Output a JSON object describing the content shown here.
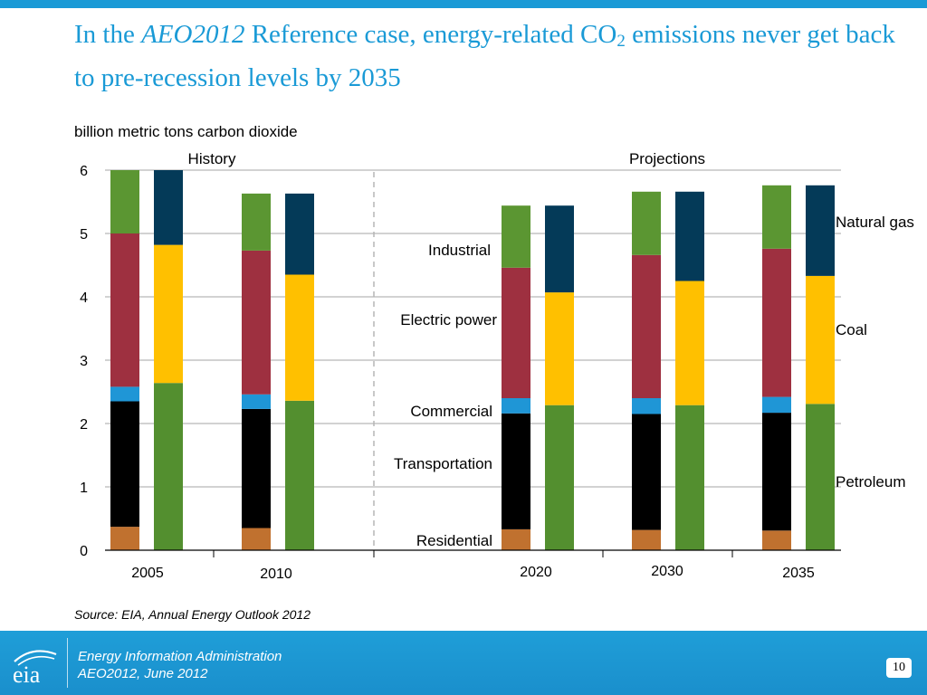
{
  "slide": {
    "title_pre": "In the ",
    "title_italic": "AEO2012",
    "title_mid": " Reference case, energy-related CO",
    "title_sub": "2",
    "title_post": " emissions never get back to pre-recession levels by 2035",
    "units_label": "billion metric tons carbon dioxide",
    "source": "Source:  EIA, Annual Energy Outlook 2012",
    "page_number": "10"
  },
  "footer": {
    "org": "Energy Information Administration",
    "report": "AEO2012, June 2012",
    "logo_text": "eia"
  },
  "colors": {
    "residential": "#c0712f",
    "transportation": "#000000",
    "commercial": "#1f96d6",
    "electric_power": "#9e3040",
    "industrial": "#5b9632",
    "petroleum": "#538f2f",
    "coal": "#ffc000",
    "natural_gas": "#043a58",
    "accent": "#1a9ad6"
  },
  "chart_data": {
    "type": "bar",
    "stacked": true,
    "ylabel": "billion metric tons carbon dioxide",
    "ylim": [
      0,
      6
    ],
    "yticks": [
      "0",
      "1",
      "2",
      "3",
      "4",
      "5",
      "6"
    ],
    "regions": [
      {
        "label": "History",
        "years": [
          "2005",
          "2010"
        ]
      },
      {
        "label": "Projections",
        "years": [
          "2020",
          "2030",
          "2035"
        ]
      }
    ],
    "categories": [
      "2005",
      "2010",
      "2020",
      "2030",
      "2035"
    ],
    "by_sector": {
      "residential": [
        0.37,
        0.35,
        0.33,
        0.32,
        0.31
      ],
      "transportation": [
        1.98,
        1.88,
        1.83,
        1.83,
        1.86
      ],
      "commercial": [
        0.23,
        0.23,
        0.24,
        0.25,
        0.25
      ],
      "electric_power": [
        2.42,
        2.27,
        2.06,
        2.26,
        2.34
      ],
      "industrial": [
        1.0,
        0.9,
        0.98,
        1.0,
        1.0
      ]
    },
    "by_fuel": {
      "petroleum": [
        2.64,
        2.36,
        2.29,
        2.29,
        2.31
      ],
      "coal": [
        2.18,
        1.99,
        1.78,
        1.96,
        2.02
      ],
      "natural_gas": [
        1.18,
        1.28,
        1.37,
        1.41,
        1.43
      ]
    },
    "sector_labels": {
      "industrial": "Industrial",
      "electric_power": "Electric power",
      "commercial": "Commercial",
      "transportation": "Transportation",
      "residential": "Residential"
    },
    "fuel_labels": {
      "natural_gas": "Natural gas",
      "coal": "Coal",
      "petroleum": "Petroleum"
    }
  }
}
